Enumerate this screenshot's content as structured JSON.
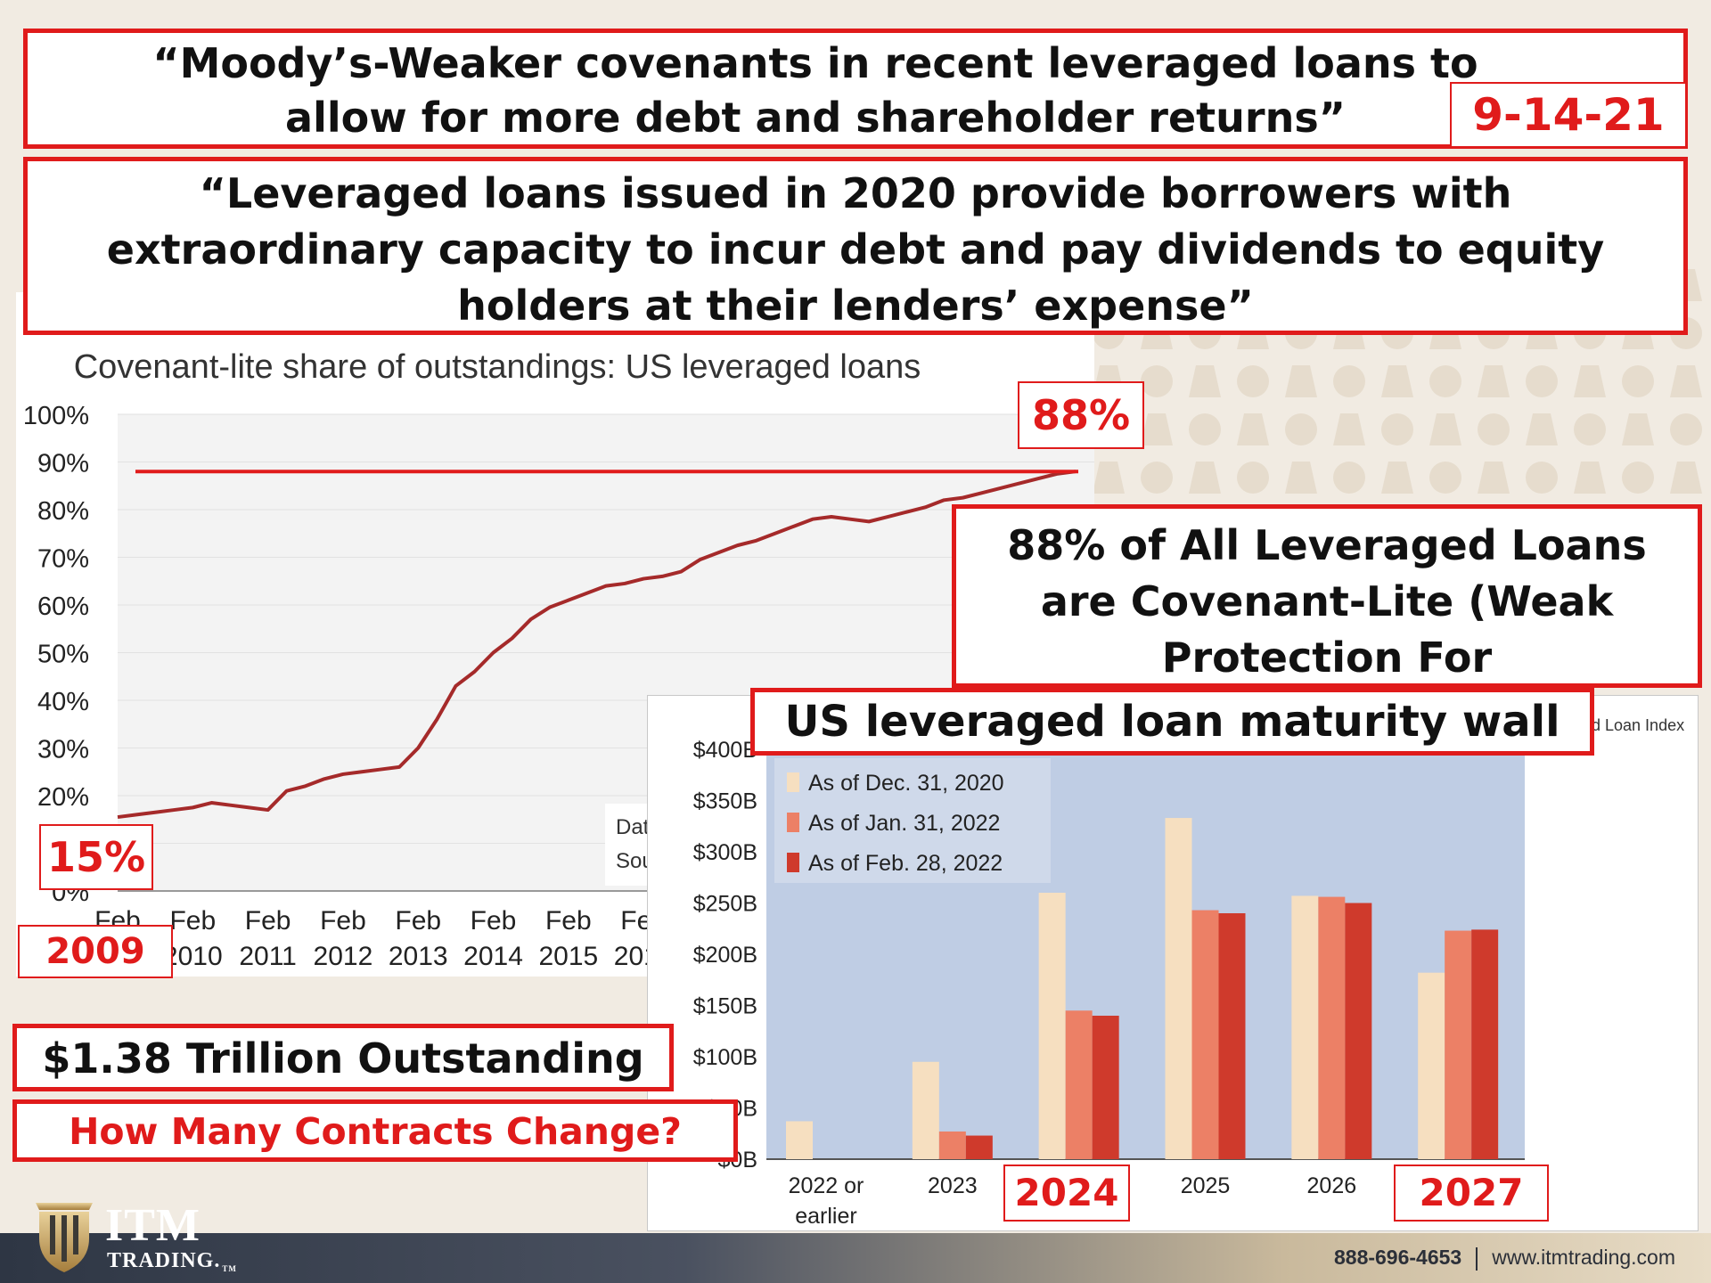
{
  "headline_1": "“Moody’s-Weaker covenants in recent leveraged loans to allow for more debt and shareholder returns”",
  "date_tag": "9-14-21",
  "headline_2": "“Leveraged loans issued in 2020 provide borrowers with extraordinary capacity to incur debt and pay dividends to equity holders at their lenders’ expense”",
  "callout_88_text": "88% of All Leveraged Loans are Covenant-Lite (Weak Protection For",
  "tag_88": "88%",
  "tag_15": "15%",
  "tag_2009": "2009",
  "outstanding_text": "$1.38 Trillion Outstanding",
  "question_text": "How Many Contracts Change?",
  "maturity_title": "US leveraged loan maturity wall",
  "maturity_index_fragment": "d Loan Index",
  "tag_2024": "2024",
  "tag_2027": "2027",
  "line_note_1": "Dat",
  "line_note_2": "Sou",
  "footer_phone": "888-696-4653",
  "footer_url": "www.itmtrading.com",
  "logo_name": "ITM",
  "logo_sub": "TRADING.",
  "logo_tm": "TM",
  "chart_data": [
    {
      "type": "line",
      "title": "Covenant-lite share of outstandings: US leveraged loans",
      "xlabel": "",
      "ylabel": "",
      "ylim": [
        0,
        100
      ],
      "y_ticks": [
        "100%",
        "90%",
        "80%",
        "70%",
        "60%",
        "50%",
        "40%",
        "30%",
        "20%",
        "10%",
        "0%"
      ],
      "x_ticks": [
        "Feb 2009",
        "Feb 2010",
        "Feb 2011",
        "Feb 2012",
        "Feb 2013",
        "Feb 2014",
        "Feb 2015",
        "Feb 2016"
      ],
      "grid": true,
      "reference_line": 88,
      "series": [
        {
          "color": "#a52a2a",
          "x": [
            2009.0,
            2009.25,
            2009.5,
            2009.75,
            2010.0,
            2010.25,
            2010.5,
            2010.75,
            2011.0,
            2011.25,
            2011.5,
            2011.75,
            2012.0,
            2012.25,
            2012.5,
            2012.75,
            2013.0,
            2013.25,
            2013.5,
            2013.75,
            2014.0,
            2014.25,
            2014.5,
            2014.75,
            2015.0,
            2015.25,
            2015.5,
            2015.75,
            2016.0,
            2016.25,
            2016.5,
            2016.75,
            2017.0,
            2017.25,
            2017.5,
            2017.75,
            2018.0,
            2018.25,
            2018.5,
            2018.75,
            2019.0,
            2019.25,
            2019.5,
            2019.75,
            2020.0,
            2020.25,
            2020.5,
            2020.75,
            2021.0,
            2021.25,
            2021.5,
            2021.75
          ],
          "values": [
            15.5,
            16.0,
            16.5,
            17.0,
            17.5,
            18.5,
            18.0,
            17.5,
            17.0,
            21.0,
            22.0,
            23.5,
            24.5,
            25.0,
            25.5,
            26.0,
            30.0,
            36.0,
            43.0,
            46.0,
            50.0,
            53.0,
            57.0,
            59.5,
            61.0,
            62.5,
            64.0,
            64.5,
            65.5,
            66.0,
            67.0,
            69.5,
            71.0,
            72.5,
            73.5,
            75.0,
            76.5,
            78.0,
            78.5,
            78.0,
            77.5,
            78.5,
            79.5,
            80.5,
            82.0,
            82.5,
            83.5,
            84.5,
            85.5,
            86.5,
            87.5,
            88.0
          ]
        }
      ]
    },
    {
      "type": "bar",
      "title": "US leveraged loan maturity wall",
      "xlabel": "",
      "ylabel": "",
      "ylim": [
        0,
        400
      ],
      "y_ticks": [
        "$400B",
        "$350B",
        "$300B",
        "$250B",
        "$200B",
        "$150B",
        "$100B",
        "$50B",
        "$0B"
      ],
      "categories": [
        "2022 or earlier",
        "2023",
        "2024",
        "2025",
        "2026",
        "2027"
      ],
      "legend_position": "top-left",
      "series": [
        {
          "name": "As of Dec. 31, 2020",
          "color": "#f6dfc0",
          "values": [
            37,
            95,
            260,
            333,
            257,
            182
          ]
        },
        {
          "name": "As of Jan. 31, 2022",
          "color": "#ec8066",
          "values": [
            0,
            27,
            145,
            243,
            256,
            223
          ]
        },
        {
          "name": "As of Feb. 28, 2022",
          "color": "#cf3a2c",
          "values": [
            0,
            23,
            140,
            240,
            250,
            224
          ]
        }
      ]
    }
  ]
}
